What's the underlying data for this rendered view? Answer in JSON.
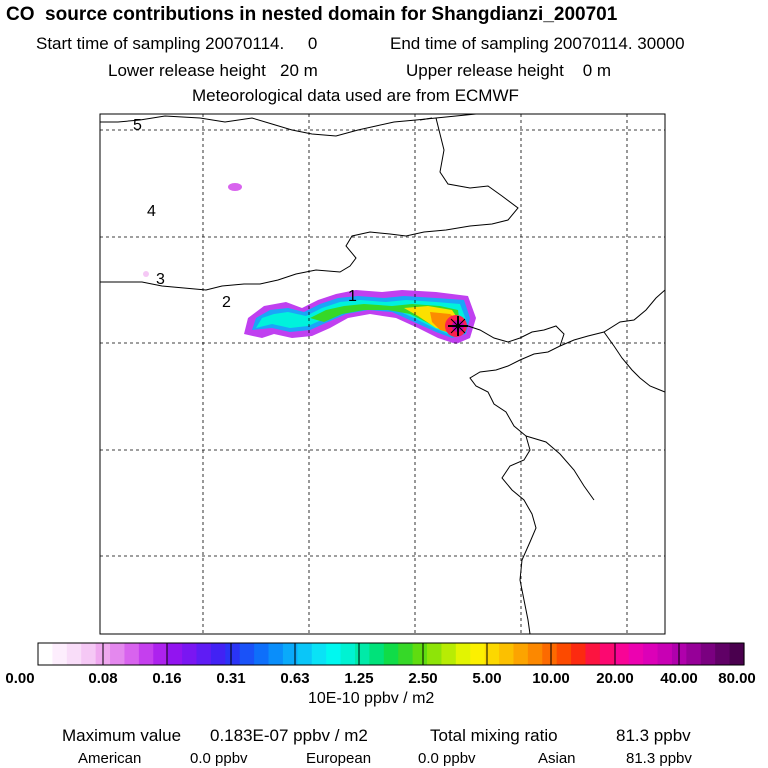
{
  "header": {
    "title": "CO  source contributions in nested domain for Shangdianzi_200701",
    "start_label": "Start time of sampling 20070114.     0",
    "end_label": "End time of sampling 20070114. 30000",
    "lower_label": "Lower release height   20 m",
    "upper_label": "Upper release height    0 m",
    "met_label": "Meteorological data used are from ECMWF"
  },
  "map": {
    "trajectory_labels": [
      "5",
      "4",
      "3",
      "2",
      "1"
    ]
  },
  "colorbar": {
    "ticks": [
      "0.00",
      "0.08",
      "0.16",
      "0.31",
      "0.63",
      "1.25",
      "2.50",
      "5.00",
      "10.00",
      "20.00",
      "40.00",
      "80.00"
    ],
    "units": "10E-10 ppbv / m2",
    "colors": [
      "#ffffff",
      "#fdeefd",
      "#f9ddf9",
      "#f5c8f5",
      "#efa8ef",
      "#e488ee",
      "#d863ee",
      "#c53fee",
      "#ad22ee",
      "#9214f0",
      "#7a16f2",
      "#5f1cf4",
      "#4222f4",
      "#2a34f6",
      "#1a52f8",
      "#0e6ffa",
      "#0a8efa",
      "#0aaafa",
      "#0ac6f8",
      "#0ae2f6",
      "#00f8f0",
      "#00f2d2",
      "#00eaa8",
      "#00e27a",
      "#10dc48",
      "#36d828",
      "#60dc10",
      "#8ee408",
      "#b8ec04",
      "#e2f402",
      "#fcf000",
      "#fcd800",
      "#fcc000",
      "#fca400",
      "#fc8800",
      "#fc6a00",
      "#fc4a00",
      "#fc2a10",
      "#fc1440",
      "#fc0870",
      "#f80496",
      "#ec02b0",
      "#dc00b8",
      "#c800b4",
      "#b000ac",
      "#960098",
      "#7a0080",
      "#600066",
      "#4a004e"
    ]
  },
  "stats": {
    "max_label": "Maximum value",
    "max_value": "0.183E-07 ppbv / m2",
    "tmr_label": "Total mixing ratio",
    "tmr_value": "81.3 ppbv",
    "american_label": "American",
    "american_value": "0.0 ppbv",
    "european_label": "European",
    "european_value": "0.0 ppbv",
    "asian_label": "Asian",
    "asian_value": "81.3 ppbv"
  }
}
